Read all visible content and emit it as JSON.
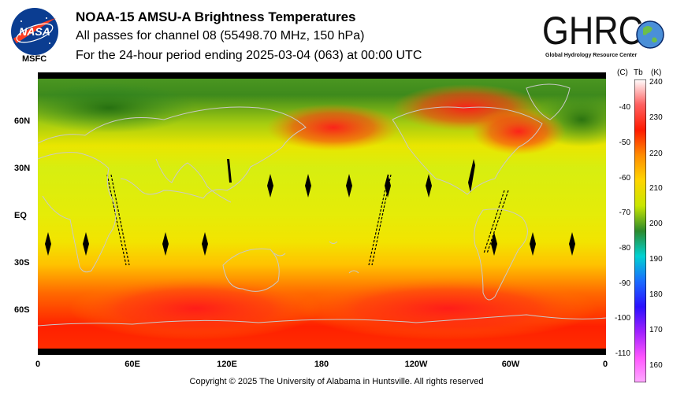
{
  "header": {
    "title": "NOAA-15 AMSU-A Brightness Temperatures",
    "subtitle": "All passes for channel 08 (55498.70 MHz, 150 hPa)",
    "period": "For the 24-hour period ending 2025-03-04 (063) at 00:00 UTC"
  },
  "logos": {
    "nasa_text": "NASA",
    "msfc_text": "MSFC",
    "ghrc_text": "GHRC",
    "ghrc_tagline": "Global Hydrology Resource Center"
  },
  "map": {
    "lat_labels": [
      "60N",
      "30N",
      "EQ",
      "30S",
      "60S"
    ],
    "lon_labels": [
      "0",
      "60E",
      "120E",
      "180",
      "120W",
      "60W",
      "0"
    ]
  },
  "colorbar": {
    "unit_c": "(C)",
    "unit_tb": "Tb",
    "unit_k": "(K)",
    "celsius_labels": [
      "-40",
      "-50",
      "-60",
      "-70",
      "-80",
      "-90",
      "-100",
      "-110"
    ],
    "kelvin_labels": [
      "240",
      "230",
      "220",
      "210",
      "200",
      "190",
      "180",
      "170",
      "160"
    ],
    "colors": [
      "#ffffff",
      "#ff6060",
      "#ff1a00",
      "#ff8c00",
      "#ffd500",
      "#c8e600",
      "#2c8a2c",
      "#00d2d2",
      "#1a6bff",
      "#2a10ff",
      "#a020ff",
      "#ff55ff",
      "#ffaaff"
    ]
  },
  "footer": {
    "copyright": "Copyright © 2025 The University of Alabama in Huntsville.  All rights reserved"
  }
}
